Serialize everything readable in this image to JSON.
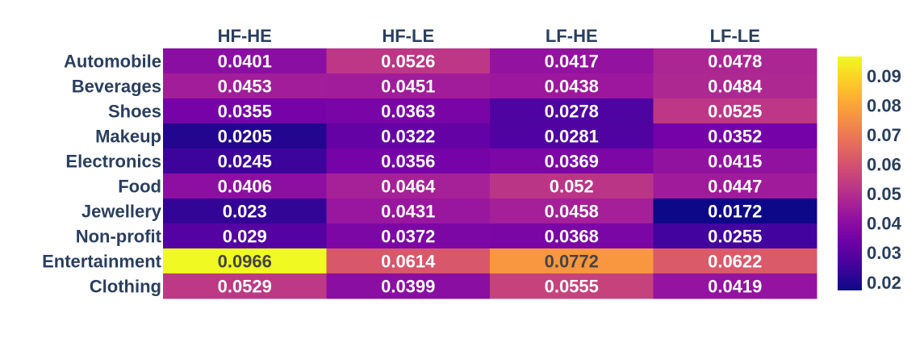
{
  "chart_data": {
    "type": "heatmap",
    "title": "",
    "xlabel": "",
    "ylabel": "",
    "columns": [
      "HF-HE",
      "HF-LE",
      "LF-HE",
      "LF-LE"
    ],
    "rows": [
      "Automobile",
      "Beverages",
      "Shoes",
      "Makeup",
      "Electronics",
      "Food",
      "Jewellery",
      "Non-profit",
      "Entertainment",
      "Clothing"
    ],
    "values": [
      [
        0.0401,
        0.0526,
        0.0417,
        0.0478
      ],
      [
        0.0453,
        0.0451,
        0.0438,
        0.0484
      ],
      [
        0.0355,
        0.0363,
        0.0278,
        0.0525
      ],
      [
        0.0205,
        0.0322,
        0.0281,
        0.0352
      ],
      [
        0.0245,
        0.0356,
        0.0369,
        0.0415
      ],
      [
        0.0406,
        0.0464,
        0.052,
        0.0447
      ],
      [
        0.023,
        0.0431,
        0.0458,
        0.0172
      ],
      [
        0.029,
        0.0372,
        0.0368,
        0.0255
      ],
      [
        0.0966,
        0.0614,
        0.0772,
        0.0622
      ],
      [
        0.0529,
        0.0399,
        0.0555,
        0.0419
      ]
    ],
    "cell_labels": [
      [
        "0.0401",
        "0.0526",
        "0.0417",
        "0.0478"
      ],
      [
        "0.0453",
        "0.0451",
        "0.0438",
        "0.0484"
      ],
      [
        "0.0355",
        "0.0363",
        "0.0278",
        "0.0525"
      ],
      [
        "0.0205",
        "0.0322",
        "0.0281",
        "0.0352"
      ],
      [
        "0.0245",
        "0.0356",
        "0.0369",
        "0.0415"
      ],
      [
        "0.0406",
        "0.0464",
        "0.052",
        "0.0447"
      ],
      [
        "0.023",
        "0.0431",
        "0.0458",
        "0.0172"
      ],
      [
        "0.029",
        "0.0372",
        "0.0368",
        "0.0255"
      ],
      [
        "0.0966",
        "0.0614",
        "0.0772",
        "0.0622"
      ],
      [
        "0.0529",
        "0.0399",
        "0.0555",
        "0.0419"
      ]
    ],
    "zrange": [
      0.0172,
      0.0966
    ],
    "colorscale": "plasma",
    "colorbar_ticks": [
      0.02,
      0.03,
      0.04,
      0.05,
      0.06,
      0.07,
      0.08,
      0.09
    ],
    "colorbar_tick_labels": [
      "0.02",
      "0.03",
      "0.04",
      "0.05",
      "0.06",
      "0.07",
      "0.08",
      "0.09"
    ],
    "column_axis_position": "top",
    "grid": false,
    "legend": "colorbar-right"
  },
  "colors": {
    "tick_text": "#2a3f5f",
    "light_text": "#ffffff",
    "dark_text": "#444444"
  }
}
